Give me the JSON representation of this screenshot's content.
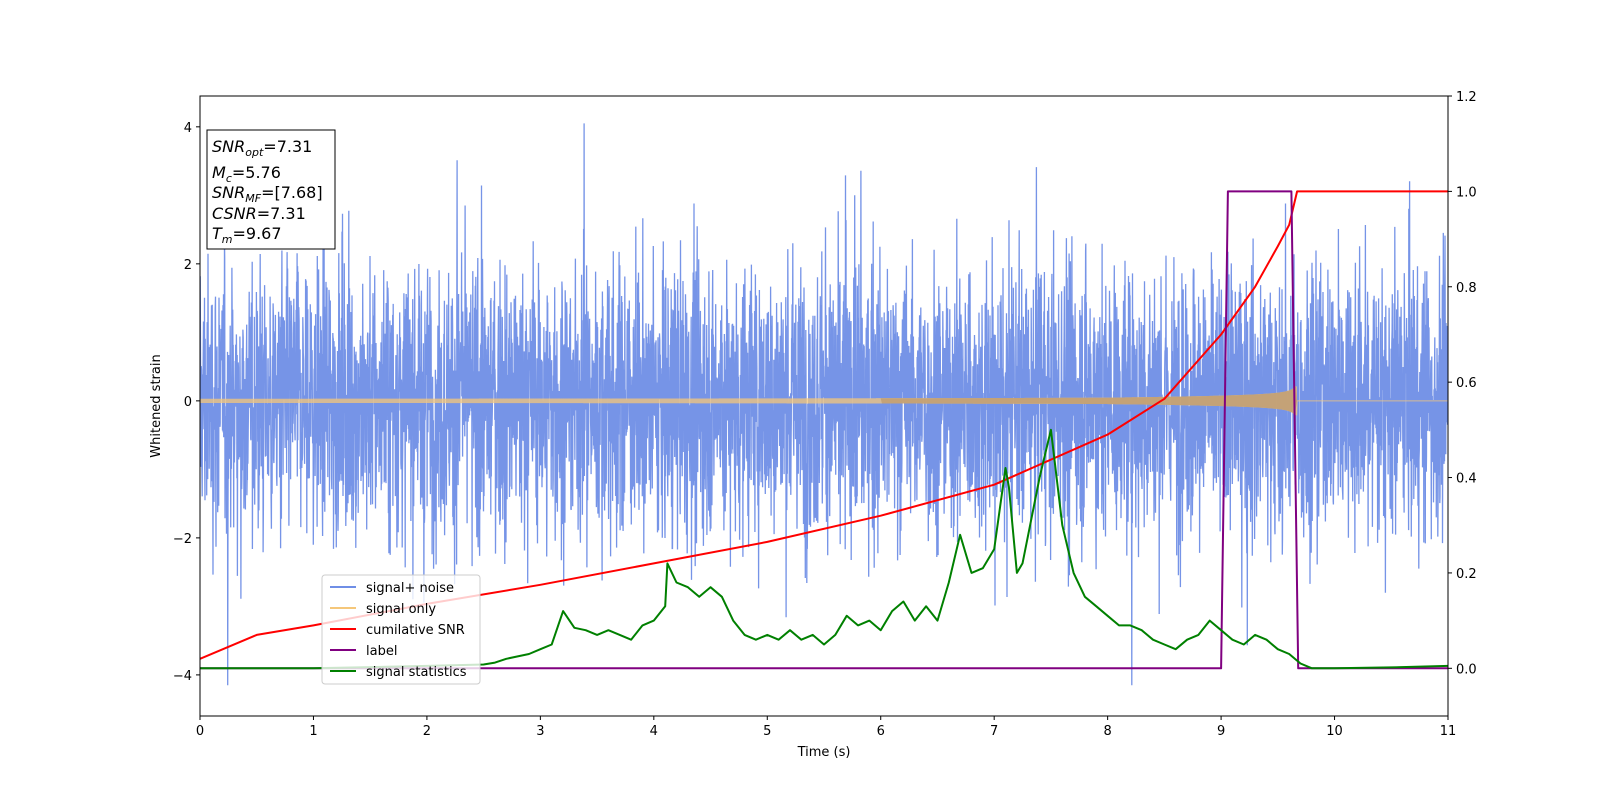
{
  "chart_data": {
    "type": "line",
    "xlabel": "Time (s)",
    "ylabel": "Whitened strain",
    "xlim": [
      0,
      11
    ],
    "ylim": [
      -4.6,
      4.45
    ],
    "y2lim": [
      -0.1,
      1.2
    ],
    "x_ticks": [
      0,
      1,
      2,
      3,
      4,
      5,
      6,
      7,
      8,
      9,
      10,
      11
    ],
    "y_ticks": [
      -4,
      -2,
      0,
      2,
      4
    ],
    "y2_ticks": [
      0.0,
      0.2,
      0.4,
      0.6,
      0.8,
      1.0,
      1.2
    ],
    "y2_tick_labels": [
      "0.0",
      "0.2",
      "0.4",
      "0.6",
      "0.8",
      "1.0",
      "1.2"
    ],
    "legend_position": "lower-left",
    "annotation": {
      "lines": [
        {
          "main": "SNR",
          "sub": "opt",
          "value": "=7.31"
        },
        {
          "main": "M",
          "sub": "c",
          "value": "=5.76"
        },
        {
          "main": "SNR",
          "sub": "MF",
          "value": "=[7.68]"
        },
        {
          "main": "CSNR",
          "sub": "",
          "value": "=7.31"
        },
        {
          "main": "T",
          "sub": "m",
          "value": "=9.67"
        }
      ]
    },
    "series": [
      {
        "name": "signal+ noise",
        "color": "#6f8ee6",
        "axis": "left",
        "kind": "noise",
        "sigma": 1.0,
        "merger_time": 9.67
      },
      {
        "name": "signal only",
        "color": "#f5c77a",
        "axis": "left",
        "kind": "chirp",
        "merger_time": 9.67,
        "amplitude_start": 0.03,
        "amplitude_end": 0.7
      },
      {
        "name": "cumilative SNR",
        "color": "#ff0000",
        "axis": "right",
        "x": [
          0,
          0.5,
          1,
          2,
          3,
          4,
          5,
          6,
          7,
          8,
          8.5,
          9,
          9.3,
          9.5,
          9.6,
          9.67,
          11
        ],
        "y": [
          0.02,
          0.07,
          0.09,
          0.135,
          0.175,
          0.22,
          0.265,
          0.32,
          0.385,
          0.49,
          0.565,
          0.7,
          0.8,
          0.885,
          0.93,
          1.0,
          1.0
        ]
      },
      {
        "name": "label",
        "color": "#800080",
        "axis": "right",
        "x": [
          0,
          9.0,
          9.06,
          9.62,
          9.68,
          11
        ],
        "y": [
          0,
          0,
          1,
          1,
          0,
          0
        ]
      },
      {
        "name": "signal statistics",
        "color": "#008000",
        "axis": "right",
        "x": [
          0,
          1,
          2,
          2.5,
          2.6,
          2.7,
          2.8,
          2.9,
          3.0,
          3.1,
          3.2,
          3.3,
          3.4,
          3.5,
          3.6,
          3.7,
          3.8,
          3.9,
          4.0,
          4.1,
          4.12,
          4.2,
          4.3,
          4.4,
          4.5,
          4.6,
          4.7,
          4.8,
          4.9,
          5.0,
          5.1,
          5.2,
          5.3,
          5.4,
          5.5,
          5.6,
          5.7,
          5.8,
          5.9,
          6.0,
          6.1,
          6.2,
          6.3,
          6.4,
          6.5,
          6.6,
          6.7,
          6.8,
          6.9,
          7.0,
          7.1,
          7.13,
          7.2,
          7.25,
          7.3,
          7.4,
          7.5,
          7.6,
          7.7,
          7.8,
          7.9,
          8.0,
          8.1,
          8.2,
          8.3,
          8.4,
          8.5,
          8.6,
          8.7,
          8.8,
          8.9,
          9.0,
          9.1,
          9.2,
          9.3,
          9.4,
          9.5,
          9.6,
          9.7,
          9.8,
          10,
          10.5,
          11
        ],
        "y": [
          0.0,
          0.0,
          0.005,
          0.008,
          0.012,
          0.02,
          0.025,
          0.03,
          0.04,
          0.05,
          0.12,
          0.085,
          0.08,
          0.07,
          0.08,
          0.07,
          0.06,
          0.09,
          0.1,
          0.13,
          0.22,
          0.18,
          0.17,
          0.15,
          0.17,
          0.15,
          0.1,
          0.07,
          0.06,
          0.07,
          0.06,
          0.08,
          0.06,
          0.07,
          0.05,
          0.07,
          0.11,
          0.09,
          0.1,
          0.08,
          0.12,
          0.14,
          0.1,
          0.13,
          0.1,
          0.18,
          0.28,
          0.2,
          0.21,
          0.25,
          0.42,
          0.38,
          0.2,
          0.22,
          0.28,
          0.4,
          0.5,
          0.3,
          0.2,
          0.15,
          0.13,
          0.11,
          0.09,
          0.09,
          0.08,
          0.06,
          0.05,
          0.04,
          0.06,
          0.07,
          0.1,
          0.08,
          0.06,
          0.05,
          0.07,
          0.06,
          0.04,
          0.03,
          0.01,
          0.0,
          0.0,
          0.002,
          0.005
        ]
      }
    ]
  }
}
